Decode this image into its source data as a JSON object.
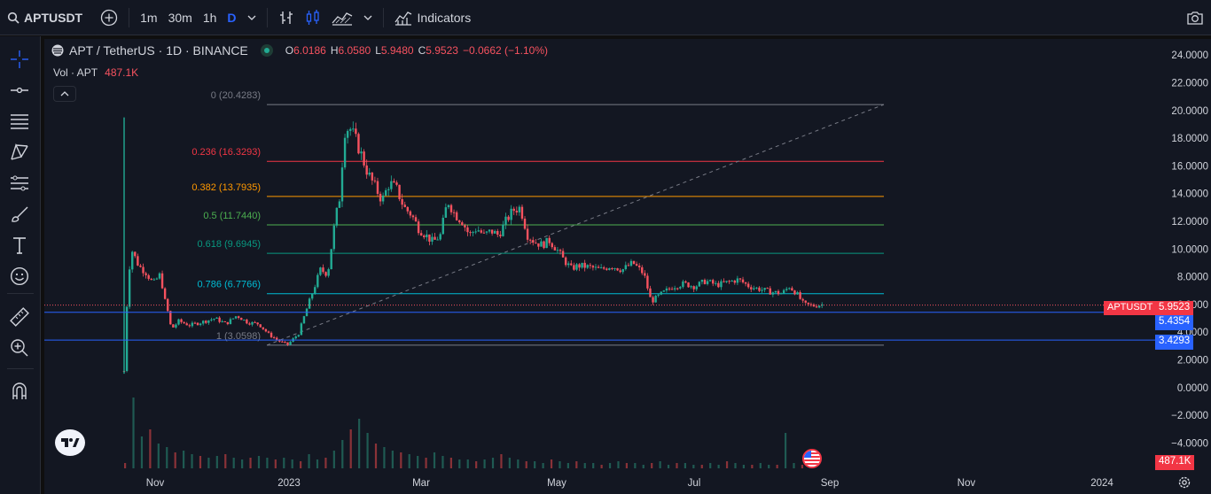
{
  "toolbar": {
    "symbol": "APTUSDT",
    "intervals": [
      "1m",
      "30m",
      "1h",
      "D"
    ],
    "active_interval": "D",
    "indicators_label": "Indicators"
  },
  "legend": {
    "title": "APT / TetherUS · 1D · BINANCE",
    "o_label": "O",
    "o": "6.0186",
    "h_label": "H",
    "h": "6.0580",
    "l_label": "L",
    "l": "5.9480",
    "c_label": "C",
    "c": "5.9523",
    "change": "−0.0662 (−1.10%)",
    "vol_label": "Vol · APT",
    "vol_value": "487.1K"
  },
  "badges": {
    "symbol": "APTUSDT",
    "price": "5.9523",
    "line1": "5.4354",
    "line2": "3.4293",
    "volume": "487.1K"
  },
  "colors": {
    "up": "#22ab94",
    "down": "#f7525f",
    "accent": "#2962ff",
    "bg": "#131722"
  },
  "chart_data": {
    "type": "candlestick",
    "y_axis_ticks": [
      "24.0000",
      "22.0000",
      "20.0000",
      "18.0000",
      "16.0000",
      "14.0000",
      "12.0000",
      "10.0000",
      "8.0000",
      "6.0000",
      "4.0000",
      "2.0000",
      "0.0000",
      "−2.0000",
      "−4.0000"
    ],
    "y_tick_values": [
      24,
      22,
      20,
      18,
      16,
      14,
      12,
      10,
      8,
      6,
      4,
      2,
      0,
      -2,
      -4
    ],
    "x_axis_ticks": [
      "Nov",
      "2023",
      "Mar",
      "May",
      "Jul",
      "Sep",
      "Nov",
      "2024"
    ],
    "ylim": [
      -6,
      25
    ],
    "fib_levels": [
      {
        "label": "0 (20.4283)",
        "value": 20.4283,
        "color": "#787b86"
      },
      {
        "label": "0.236 (16.3293)",
        "value": 16.3293,
        "color": "#f23645"
      },
      {
        "label": "0.382 (13.7935)",
        "value": 13.7935,
        "color": "#ff9800"
      },
      {
        "label": "0.5 (11.7440)",
        "value": 11.744,
        "color": "#4caf50"
      },
      {
        "label": "0.618 (9.6945)",
        "value": 9.6945,
        "color": "#089981"
      },
      {
        "label": "0.786 (6.7766)",
        "value": 6.7766,
        "color": "#00bcd4"
      },
      {
        "label": "1 (3.0598)",
        "value": 3.0598,
        "color": "#787b86"
      }
    ],
    "horizontal_lines": [
      5.4354,
      3.4293
    ],
    "last_price": 5.9523,
    "close_path": [
      [
        0,
        1.2
      ],
      [
        2,
        7.5
      ],
      [
        4,
        10
      ],
      [
        8,
        8.8
      ],
      [
        12,
        8.3
      ],
      [
        16,
        7.5
      ],
      [
        20,
        8.2
      ],
      [
        22,
        6.5
      ],
      [
        24,
        5.5
      ],
      [
        26,
        4.2
      ],
      [
        30,
        4.8
      ],
      [
        36,
        4.5
      ],
      [
        42,
        4.7
      ],
      [
        50,
        5.0
      ],
      [
        56,
        4.6
      ],
      [
        62,
        5.2
      ],
      [
        68,
        4.7
      ],
      [
        74,
        4.6
      ],
      [
        80,
        3.8
      ],
      [
        86,
        3.3
      ],
      [
        90,
        3.1
      ],
      [
        96,
        3.9
      ],
      [
        100,
        5.5
      ],
      [
        104,
        7.0
      ],
      [
        108,
        8.5
      ],
      [
        112,
        8.2
      ],
      [
        116,
        12.0
      ],
      [
        119,
        14.0
      ],
      [
        121,
        18.5
      ],
      [
        124,
        18.8
      ],
      [
        127,
        18.0
      ],
      [
        130,
        17.0
      ],
      [
        134,
        15.5
      ],
      [
        138,
        14.5
      ],
      [
        142,
        13.5
      ],
      [
        146,
        14.8
      ],
      [
        150,
        14.3
      ],
      [
        154,
        13.0
      ],
      [
        158,
        12.5
      ],
      [
        162,
        11.5
      ],
      [
        166,
        11.0
      ],
      [
        170,
        10.5
      ],
      [
        174,
        11.0
      ],
      [
        178,
        13.5
      ],
      [
        182,
        12.5
      ],
      [
        186,
        12.0
      ],
      [
        190,
        11.0
      ],
      [
        194,
        11.5
      ],
      [
        198,
        11.0
      ],
      [
        202,
        11.3
      ],
      [
        206,
        11.0
      ],
      [
        210,
        12.0
      ],
      [
        214,
        12.8
      ],
      [
        218,
        13.0
      ],
      [
        222,
        11.0
      ],
      [
        226,
        10.5
      ],
      [
        230,
        10.3
      ],
      [
        234,
        10.6
      ],
      [
        238,
        10.0
      ],
      [
        242,
        9.2
      ],
      [
        246,
        8.6
      ],
      [
        250,
        8.8
      ],
      [
        256,
        8.7
      ],
      [
        262,
        8.5
      ],
      [
        268,
        8.8
      ],
      [
        274,
        8.5
      ],
      [
        280,
        9.0
      ],
      [
        286,
        8.2
      ],
      [
        290,
        6.2
      ],
      [
        296,
        6.8
      ],
      [
        302,
        7.3
      ],
      [
        308,
        7.5
      ],
      [
        314,
        7.3
      ],
      [
        320,
        7.7
      ],
      [
        326,
        7.4
      ],
      [
        332,
        7.6
      ],
      [
        338,
        7.8
      ],
      [
        344,
        7.3
      ],
      [
        350,
        7.1
      ],
      [
        356,
        6.9
      ],
      [
        362,
        6.8
      ],
      [
        366,
        7.3
      ],
      [
        370,
        6.8
      ],
      [
        374,
        6.0
      ],
      [
        380,
        5.9
      ],
      [
        384,
        6.0
      ]
    ],
    "volume_profile": [
      3,
      40,
      18,
      22,
      14,
      12,
      9,
      10,
      8,
      7,
      6,
      7,
      8,
      6,
      5,
      6,
      7,
      6,
      5,
      6,
      5,
      4,
      8,
      5,
      6,
      10,
      16,
      22,
      28,
      20,
      14,
      12,
      10,
      9,
      8,
      7,
      6,
      9,
      7,
      6,
      5,
      5,
      4,
      5,
      6,
      8,
      6,
      5,
      4,
      4,
      3,
      5,
      4,
      3,
      4,
      3,
      3,
      2,
      3,
      4,
      3,
      3,
      2,
      3,
      4,
      2,
      3,
      3,
      2,
      2,
      3,
      2,
      4,
      3,
      2,
      2,
      3,
      2,
      2,
      20,
      3,
      2,
      3
    ]
  }
}
